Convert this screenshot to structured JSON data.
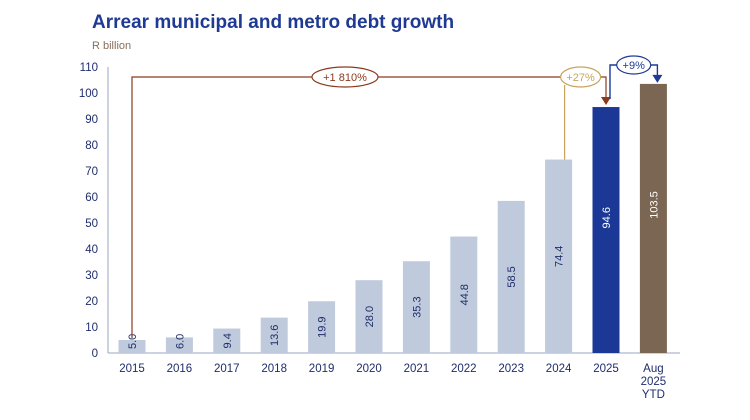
{
  "title": "Arrear municipal and metro debt growth",
  "unit_label": "R billion",
  "colors": {
    "title": "#1f3a93",
    "bar_default": "#bfcadc",
    "bar_2025": "#1b3896",
    "bar_aug": "#7a6652",
    "axis_text": "#1f2d6b",
    "anno_brown": "#8b3a1e",
    "anno_gold": "#c8a45c",
    "anno_blue": "#1f3a93"
  },
  "chart_data": {
    "type": "bar",
    "categories": [
      "2015",
      "2016",
      "2017",
      "2018",
      "2019",
      "2020",
      "2021",
      "2022",
      "2023",
      "2024",
      "2025",
      "Aug\n2025\nYTD"
    ],
    "values": [
      5.0,
      6.0,
      9.4,
      13.6,
      19.9,
      28.0,
      35.3,
      44.8,
      58.5,
      74.4,
      94.6,
      103.5
    ],
    "value_labels": [
      "5.0",
      "6.0",
      "9.4",
      "13.6",
      "19.9",
      "28.0",
      "35.3",
      "44.8",
      "58.5",
      "74.4",
      "94.6",
      "103.5"
    ],
    "ylim": [
      0,
      110
    ],
    "yticks": [
      0,
      10,
      20,
      30,
      40,
      50,
      60,
      70,
      80,
      90,
      100,
      110
    ],
    "ylabel": "R billion",
    "grid": false,
    "annotations": [
      {
        "text": "+1 810%",
        "from": "2015",
        "to": "2025",
        "color": "anno_brown"
      },
      {
        "text": "+27%",
        "from": "2024",
        "to": "2025",
        "color": "anno_gold"
      },
      {
        "text": "+9%",
        "from": "2025",
        "to": "Aug\n2025\nYTD",
        "color": "anno_blue"
      }
    ]
  }
}
